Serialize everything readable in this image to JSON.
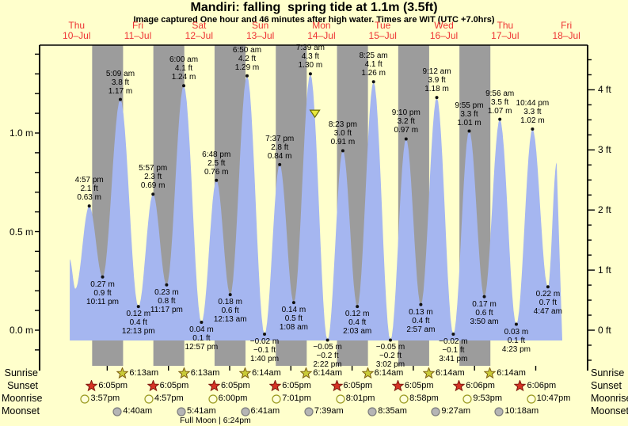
{
  "title": "Mandiri: falling  spring tide at 1.1m (3.5ft)",
  "subtitle": "Image captured One hour and 46 minutes after high water. Times are WIT (UTC +7.0hrs)",
  "colors": {
    "background": "#ffffcc",
    "day_band": "#ffffcc",
    "night_band": "#9c9c9c",
    "tide_fill": "#a5b6f0",
    "date_red": "#ee3333",
    "axis_black": "#000000",
    "sunrise_star_fill": "#c9cb37",
    "sunrise_star_stroke": "#7a5c10",
    "sunset_star_fill": "#d63324",
    "sunset_star_stroke": "#7a150c",
    "moonrise_fill": "#ffffd8",
    "moonrise_stroke": "#99991f",
    "moonset_fill": "#b5b5b5",
    "moonset_stroke": "#7d7d7d",
    "marker_fill": "#e9e93d",
    "marker_stroke": "#6b6b00"
  },
  "chart_data": {
    "type": "area",
    "title": "Mandiri: falling  spring tide at 1.1m (3.5ft)",
    "ylabel_left": "m",
    "ylabel_right": "ft",
    "ylim_m": [
      -0.05,
      1.45
    ],
    "x_range": "10-Jul 09:00 to 18-Jul 10:30",
    "grid": false,
    "days": [
      {
        "dow": "Thu",
        "date": "10–Jul"
      },
      {
        "dow": "Fri",
        "date": "11–Jul"
      },
      {
        "dow": "Sat",
        "date": "12–Jul"
      },
      {
        "dow": "Sun",
        "date": "13–Jul"
      },
      {
        "dow": "Mon",
        "date": "14–Jul"
      },
      {
        "dow": "Tue",
        "date": "15–Jul"
      },
      {
        "dow": "Wed",
        "date": "16–Jul"
      },
      {
        "dow": "Thu",
        "date": "17–Jul"
      },
      {
        "dow": "Fri",
        "date": "18–Jul"
      }
    ],
    "y_axis_left": {
      "labels": [
        {
          "v": 1.0,
          "text": "1.0 m"
        },
        {
          "v": 0.5,
          "text": "0.5 m"
        },
        {
          "v": 0.0,
          "text": "0.0 m"
        }
      ]
    },
    "y_axis_right": {
      "labels": [
        {
          "v": 4,
          "text": "4 ft"
        },
        {
          "v": 3,
          "text": "3 ft"
        },
        {
          "v": 2,
          "text": "2 ft"
        },
        {
          "v": 1,
          "text": "1 ft"
        },
        {
          "v": 0,
          "text": "0 ft"
        }
      ]
    },
    "night_bands": {
      "count": 7,
      "sunset_hour": 18.083,
      "sunrise_hour": 6.217
    },
    "current_marker": {
      "t": 105.42,
      "h": 1.1,
      "note": "capture time 1h46m after high water, tide at 1.1m"
    },
    "tide_points": [
      {
        "t": 9.3,
        "h": 0.36,
        "kind": "edge",
        "lines": null
      },
      {
        "t": 11.5,
        "h": 0.21,
        "kind": "low",
        "lines": null
      },
      {
        "t": 16.95,
        "h": 0.63,
        "kind": "high",
        "lines": [
          "4:57 pm",
          "2.1 ft",
          "0.63 m"
        ]
      },
      {
        "t": 22.18,
        "h": 0.27,
        "kind": "low",
        "lines": [
          "0.27 m",
          "0.9 ft",
          "10:11 pm"
        ]
      },
      {
        "t": 29.15,
        "h": 1.17,
        "kind": "high",
        "lines": [
          "5:09 am",
          "3.8 ft",
          "1.17 m"
        ]
      },
      {
        "t": 36.22,
        "h": 0.12,
        "kind": "low",
        "lines": [
          "0.12 m",
          "0.4 ft",
          "12:13 pm"
        ]
      },
      {
        "t": 41.95,
        "h": 0.69,
        "kind": "high",
        "lines": [
          "5:57 pm",
          "2.3 ft",
          "0.69 m"
        ]
      },
      {
        "t": 47.28,
        "h": 0.23,
        "kind": "low",
        "lines": [
          "0.23 m",
          "0.8 ft",
          "11:17 pm"
        ]
      },
      {
        "t": 54.0,
        "h": 1.24,
        "kind": "high",
        "lines": [
          "6:00 am",
          "4.1 ft",
          "1.24 m"
        ]
      },
      {
        "t": 60.95,
        "h": 0.04,
        "kind": "low",
        "lines": [
          "0.04 m",
          "0.1 ft",
          "12:57 pm"
        ]
      },
      {
        "t": 66.8,
        "h": 0.76,
        "kind": "high",
        "lines": [
          "6:48 pm",
          "2.5 ft",
          "0.76 m"
        ]
      },
      {
        "t": 72.22,
        "h": 0.18,
        "kind": "low",
        "lines": [
          "0.18 m",
          "0.6 ft",
          "12:13 am"
        ]
      },
      {
        "t": 78.83,
        "h": 1.29,
        "kind": "high",
        "lines": [
          "6:50 am",
          "4.2 ft",
          "1.29 m"
        ]
      },
      {
        "t": 85.67,
        "h": -0.02,
        "kind": "low",
        "lines": [
          "−0.02 m",
          "−0.1 ft",
          "1:40 pm"
        ]
      },
      {
        "t": 91.62,
        "h": 0.84,
        "kind": "high",
        "lines": [
          "7:37 pm",
          "2.8 ft",
          "0.84 m"
        ]
      },
      {
        "t": 97.13,
        "h": 0.14,
        "kind": "low",
        "lines": [
          "0.14 m",
          "0.5 ft",
          "1:08 am"
        ]
      },
      {
        "t": 103.65,
        "h": 1.3,
        "kind": "high",
        "lines": [
          "7:39 am",
          "4.3 ft",
          "1.30 m"
        ]
      },
      {
        "t": 110.37,
        "h": -0.05,
        "kind": "low",
        "lines": [
          "−0.05 m",
          "−0.2 ft",
          "2:22 pm"
        ]
      },
      {
        "t": 116.38,
        "h": 0.91,
        "kind": "high",
        "lines": [
          "8:23 pm",
          "3.0 ft",
          "0.91 m"
        ]
      },
      {
        "t": 122.05,
        "h": 0.12,
        "kind": "low",
        "lines": [
          "0.12 m",
          "0.4 ft",
          "2:03 am"
        ]
      },
      {
        "t": 128.42,
        "h": 1.26,
        "kind": "high",
        "lines": [
          "8:25 am",
          "4.1 ft",
          "1.26 m"
        ]
      },
      {
        "t": 135.03,
        "h": -0.05,
        "kind": "low",
        "lines": [
          "−0.05 m",
          "−0.2 ft",
          "3:02 pm"
        ]
      },
      {
        "t": 141.17,
        "h": 0.97,
        "kind": "high",
        "lines": [
          "9:10 pm",
          "3.2 ft",
          "0.97 m"
        ]
      },
      {
        "t": 146.95,
        "h": 0.13,
        "kind": "low",
        "lines": [
          "0.13 m",
          "0.4 ft",
          "2:57 am"
        ]
      },
      {
        "t": 153.2,
        "h": 1.18,
        "kind": "high",
        "lines": [
          "9:12 am",
          "3.9 ft",
          "1.18 m"
        ]
      },
      {
        "t": 159.68,
        "h": -0.02,
        "kind": "low",
        "lines": [
          "−0.02 m",
          "−0.1 ft",
          "3:41 pm"
        ]
      },
      {
        "t": 165.92,
        "h": 1.01,
        "kind": "high",
        "lines": [
          "9:55 pm",
          "3.3 ft",
          "1.01 m"
        ]
      },
      {
        "t": 171.83,
        "h": 0.17,
        "kind": "low",
        "lines": [
          "0.17 m",
          "0.6 ft",
          "3:50 am"
        ]
      },
      {
        "t": 177.93,
        "h": 1.07,
        "kind": "high",
        "lines": [
          "9:56 am",
          "3.5 ft",
          "1.07 m"
        ]
      },
      {
        "t": 184.38,
        "h": 0.03,
        "kind": "low",
        "lines": [
          "0.03 m",
          "0.1 ft",
          "4:23 pm"
        ]
      },
      {
        "t": 190.73,
        "h": 1.02,
        "kind": "high",
        "lines": [
          "10:44 pm",
          "3.3 ft",
          "1.02 m"
        ]
      },
      {
        "t": 196.78,
        "h": 0.22,
        "kind": "low",
        "lines": [
          "0.22 m",
          "0.7 ft",
          "4:47 am"
        ]
      },
      {
        "t": 200.2,
        "h": 0.85,
        "kind": "edge",
        "lines": null
      },
      {
        "t": 202.4,
        "h": -0.05,
        "kind": "end",
        "lines": null
      }
    ]
  },
  "astro": {
    "row_labels": [
      "Sunrise",
      "Sunset",
      "Moonrise",
      "Moonset"
    ],
    "sunrise": [
      {
        "t": 30.217,
        "time": "6:13am"
      },
      {
        "t": 54.217,
        "time": "6:13am"
      },
      {
        "t": 78.233,
        "time": "6:14am"
      },
      {
        "t": 102.233,
        "time": "6:14am"
      },
      {
        "t": 126.233,
        "time": "6:14am"
      },
      {
        "t": 150.233,
        "time": "6:14am"
      },
      {
        "t": 174.233,
        "time": "6:14am"
      }
    ],
    "sunset": [
      {
        "t": 18.083,
        "time": "6:05pm"
      },
      {
        "t": 42.083,
        "time": "6:05pm"
      },
      {
        "t": 66.083,
        "time": "6:05pm"
      },
      {
        "t": 90.083,
        "time": "6:05pm"
      },
      {
        "t": 114.083,
        "time": "6:05pm"
      },
      {
        "t": 138.083,
        "time": "6:05pm"
      },
      {
        "t": 162.1,
        "time": "6:06pm"
      },
      {
        "t": 186.1,
        "time": "6:06pm"
      }
    ],
    "moonrise": [
      {
        "t": 15.95,
        "time": "3:57pm"
      },
      {
        "t": 40.95,
        "time": "4:57pm"
      },
      {
        "t": 66.0,
        "time": "6:00pm"
      },
      {
        "t": 91.017,
        "time": "7:01pm"
      },
      {
        "t": 116.017,
        "time": "8:01pm"
      },
      {
        "t": 140.967,
        "time": "8:58pm"
      },
      {
        "t": 165.883,
        "time": "9:53pm"
      },
      {
        "t": 190.783,
        "time": "10:47pm"
      }
    ],
    "moonset": [
      {
        "t": 28.667,
        "time": "4:40am"
      },
      {
        "t": 53.683,
        "time": "5:41am"
      },
      {
        "t": 78.683,
        "time": "6:41am"
      },
      {
        "t": 103.65,
        "time": "7:39am"
      },
      {
        "t": 128.583,
        "time": "8:35am"
      },
      {
        "t": 153.45,
        "time": "9:27am"
      },
      {
        "t": 178.3,
        "time": "10:18am"
      }
    ],
    "full_moon": {
      "text": "Full Moon | 6:24pm",
      "t": 66.4
    }
  }
}
